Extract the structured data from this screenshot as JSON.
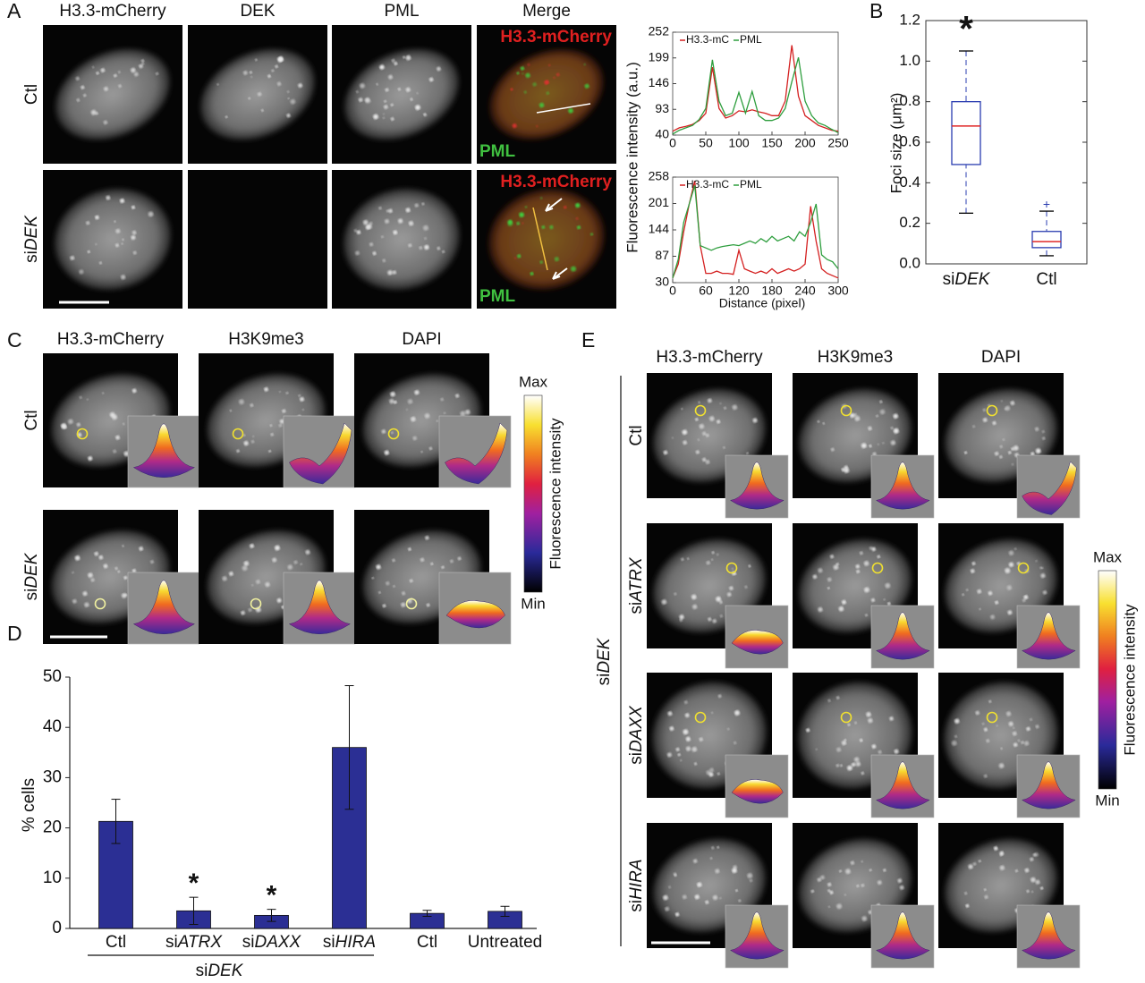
{
  "panel_labels": [
    "A",
    "B",
    "C",
    "D",
    "E"
  ],
  "panel_a": {
    "columns": [
      "H3.3-mCherry",
      "DEK",
      "PML",
      "Merge"
    ],
    "rows": [
      "Ctl",
      {
        "prefix": "si",
        "italic": "DEK"
      }
    ],
    "merge_labels": [
      "H3.3-mCherry",
      "PML"
    ],
    "profile_ylabel": "Fluorescence intensity (a.u.)",
    "profile_xlabel": "Distance (pixel)"
  },
  "chart_data": [
    {
      "type": "line",
      "x": [
        0,
        10,
        20,
        30,
        40,
        50,
        60,
        70,
        80,
        90,
        100,
        110,
        120,
        130,
        140,
        150,
        160,
        170,
        180,
        190,
        200,
        210,
        220,
        230,
        240,
        250
      ],
      "series": [
        {
          "name": "H3.3-mC",
          "color": "#d42020",
          "values": [
            48,
            55,
            58,
            62,
            70,
            85,
            180,
            95,
            75,
            80,
            90,
            88,
            92,
            88,
            85,
            80,
            80,
            110,
            225,
            120,
            80,
            70,
            60,
            55,
            50,
            48
          ]
        },
        {
          "name": "PML",
          "color": "#2e9e3e",
          "values": [
            42,
            50,
            55,
            60,
            72,
            95,
            195,
            110,
            80,
            85,
            128,
            85,
            130,
            80,
            70,
            70,
            75,
            95,
            150,
            200,
            110,
            80,
            65,
            60,
            52,
            45
          ]
        }
      ],
      "xlim": [
        0,
        250
      ],
      "xticks": [
        0,
        50,
        100,
        150,
        200,
        250
      ],
      "ylim": [
        40,
        252
      ],
      "yticks": [
        40,
        93,
        146,
        199,
        252
      ]
    },
    {
      "type": "line",
      "x": [
        0,
        10,
        20,
        30,
        40,
        50,
        60,
        70,
        80,
        90,
        100,
        110,
        120,
        130,
        140,
        150,
        160,
        170,
        180,
        190,
        200,
        210,
        220,
        230,
        240,
        250,
        260,
        270,
        280,
        290,
        300
      ],
      "series": [
        {
          "name": "H3.3-mC",
          "color": "#d42020",
          "values": [
            40,
            70,
            140,
            200,
            250,
            110,
            50,
            50,
            55,
            50,
            50,
            48,
            100,
            60,
            55,
            50,
            55,
            50,
            60,
            50,
            55,
            60,
            55,
            60,
            70,
            195,
            120,
            60,
            50,
            45,
            40
          ]
        },
        {
          "name": "PML",
          "color": "#2e9e3e",
          "values": [
            40,
            80,
            160,
            200,
            240,
            110,
            105,
            100,
            105,
            108,
            110,
            112,
            110,
            115,
            120,
            115,
            125,
            118,
            130,
            120,
            125,
            130,
            120,
            140,
            130,
            160,
            200,
            90,
            80,
            75,
            60
          ]
        }
      ],
      "xlim": [
        0,
        300
      ],
      "xticks": [
        0,
        60,
        120,
        180,
        240,
        300
      ],
      "ylim": [
        30,
        258
      ],
      "yticks": [
        30,
        87,
        144,
        201,
        258
      ]
    },
    {
      "type": "box",
      "ylabel": "Foci size (μm²)",
      "categories": [
        {
          "prefix": "si",
          "italic": "DEK"
        },
        "Ctl"
      ],
      "boxes": [
        {
          "whisker_low": 0.25,
          "q1": 0.49,
          "median": 0.68,
          "q3": 0.8,
          "whisker_high": 1.05,
          "outliers": []
        },
        {
          "whisker_low": 0.04,
          "q1": 0.08,
          "median": 0.11,
          "q3": 0.16,
          "whisker_high": 0.26,
          "outliers": [
            0.29
          ]
        }
      ],
      "significance": [
        "*",
        null
      ],
      "box_color": "#2a3cb0",
      "median_color": "#e02828",
      "ylim": [
        0,
        1.2
      ],
      "yticks": [
        {
          "value": 0,
          "label": "0.0"
        },
        0.2,
        0.4,
        0.6,
        0.8,
        {
          "value": 1,
          "label": "1.0"
        },
        1.2
      ]
    },
    {
      "type": "bar",
      "ylabel": "% cells",
      "categories": [
        "Ctl",
        {
          "prefix": "si",
          "italic": "ATRX"
        },
        {
          "prefix": "si",
          "italic": "DAXX"
        },
        {
          "prefix": "si",
          "italic": "HIRA"
        },
        "Ctl",
        "Untreated"
      ],
      "values": [
        21.3,
        3.5,
        2.6,
        36,
        3.0,
        3.4
      ],
      "errors": [
        4.4,
        2.7,
        1.2,
        12.3,
        0.6,
        1.0
      ],
      "significance": [
        null,
        "*",
        "*",
        null,
        null,
        null
      ],
      "group_label": {
        "prefix": "si",
        "italic": "DEK"
      },
      "color": "#2b2f94",
      "ylim": [
        0,
        50
      ],
      "yticks": [
        0,
        10,
        20,
        30,
        40,
        50
      ]
    }
  ],
  "panel_c": {
    "columns": [
      "H3.3-mCherry",
      "H3K9me3",
      "DAPI"
    ],
    "rows": [
      "Ctl",
      {
        "prefix": "si",
        "italic": "DEK"
      }
    ],
    "colorbar": {
      "max": "Max",
      "min": "Min",
      "label": "Fluorescence intensity"
    }
  },
  "panel_e": {
    "columns": [
      "H3.3-mCherry",
      "H3K9me3",
      "DAPI"
    ],
    "group_label": {
      "prefix": "si",
      "italic": "DEK"
    },
    "rows": [
      "Ctl",
      {
        "prefix": "si",
        "italic": "ATRX"
      },
      {
        "prefix": "si",
        "italic": "DAXX"
      },
      {
        "prefix": "si",
        "italic": "HIRA"
      }
    ],
    "colorbar": {
      "max": "Max",
      "min": "Min",
      "label": "Fluorescence intensity"
    }
  }
}
